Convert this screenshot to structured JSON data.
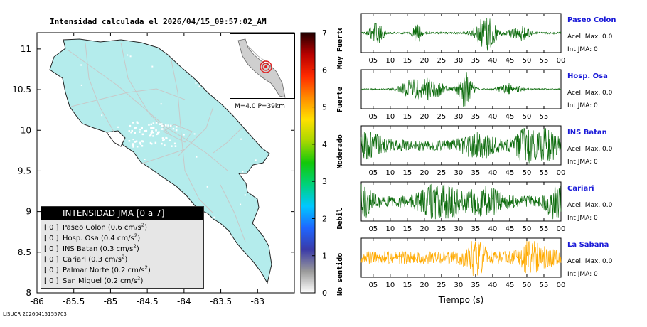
{
  "title": "Intensidad calculada el 2026/04/15_09:57:02_AM",
  "footer": "LISUCR 20260415155703",
  "inset": {
    "label": "M=4.0 P=39km"
  },
  "legend": {
    "header": "INTENSIDAD JMA [0 a 7]",
    "items": [
      {
        "level": "[ 0 ]",
        "station": "Paseo Colon",
        "accel": "(0.6 cm/s",
        "sup": "2",
        "close": ")"
      },
      {
        "level": "[ 0 ]",
        "station": "Hosp. Osa",
        "accel": "(0.4 cm/s",
        "sup": "2",
        "close": ")"
      },
      {
        "level": "[ 0 ]",
        "station": "INS Batan",
        "accel": "(0.3 cm/s",
        "sup": "2",
        "close": ")"
      },
      {
        "level": "[ 0 ]",
        "station": "Cariari",
        "accel": "(0.3 cm/s",
        "sup": "2",
        "close": ")"
      },
      {
        "level": "[ 0 ]",
        "station": "Palmar Norte",
        "accel": "(0.2 cm/s",
        "sup": "2",
        "close": ")"
      },
      {
        "level": "[ 0 ]",
        "station": "San Miguel",
        "accel": "(0.2 cm/s",
        "sup": "2",
        "close": ")"
      }
    ]
  },
  "colorbar": {
    "ticks": [
      "0",
      "1",
      "2",
      "3",
      "4",
      "5",
      "6",
      "7"
    ],
    "labels": [
      {
        "text": "No sentido",
        "value": 0.5
      },
      {
        "text": "Debil",
        "value": 2.0
      },
      {
        "text": "Moderado",
        "value": 3.8
      },
      {
        "text": "Fuerte",
        "value": 5.2
      },
      {
        "text": "Muy Fuerte",
        "value": 6.6
      }
    ],
    "colors": [
      "#ffffff",
      "#9a9a9a",
      "#3a3aa8",
      "#1e66ff",
      "#00c8ff",
      "#00d27a",
      "#12c80a",
      "#a8d800",
      "#ffe000",
      "#ff8c00",
      "#ff2a00",
      "#b80000",
      "#220000"
    ]
  },
  "map": {
    "xticks": [
      "-86",
      "-85.5",
      "-85",
      "-84.5",
      "-84",
      "-83.5",
      "-83"
    ],
    "xvalues": [
      -86,
      -85.5,
      -85,
      -84.5,
      -84,
      -83.5,
      -83
    ],
    "yticks": [
      "8",
      "8.5",
      "9",
      "9.5",
      "10",
      "10.5",
      "11"
    ],
    "yvalues": [
      8,
      8.5,
      9,
      9.5,
      10,
      10.5,
      11
    ],
    "xlim": [
      -86,
      -82.5
    ],
    "ylim": [
      8,
      11.2
    ],
    "land_color": "#b4ecec"
  },
  "chart_data": {
    "type": "line",
    "title": "Intensidad calculada el 2026/04/15_09:57:02_AM",
    "xlabel": "Tiempo (s)",
    "xticks": [
      "05",
      "10",
      "15",
      "20",
      "25",
      "30",
      "35",
      "40",
      "45",
      "50",
      "55",
      "00"
    ],
    "stations": [
      {
        "name": "Paseo Colon",
        "accel": "Acel. Max. 0.0",
        "jma": "Int JMA: 0",
        "color": "#0a6a0a",
        "xticks": [
          "05",
          "10",
          "15",
          "20",
          "25",
          "30",
          "35",
          "40",
          "45",
          "50",
          "55",
          "00"
        ],
        "noise": 0.05,
        "bursts": [
          [
            6,
            2,
            0.6
          ],
          [
            18,
            1.5,
            0.5
          ],
          [
            38,
            3,
            1.0
          ],
          [
            48,
            3,
            0.4
          ]
        ]
      },
      {
        "name": "Hosp. Osa",
        "accel": "Acel. Max. 0.0",
        "jma": "Int JMA: 0",
        "color": "#0a6a0a",
        "xticks": [
          "05",
          "10",
          "15",
          "20",
          "25",
          "30",
          "35",
          "40",
          "45",
          "50",
          "55"
        ],
        "noise": 0.04,
        "bursts": [
          [
            16,
            3,
            0.5
          ],
          [
            22,
            4,
            0.6
          ],
          [
            32,
            2,
            1.0
          ],
          [
            45,
            3,
            0.3
          ]
        ]
      },
      {
        "name": "INS Batan",
        "accel": "Acel. Max. 0.0",
        "jma": "Int JMA: 0",
        "color": "#0a6a0a",
        "xticks": [
          "05",
          "10",
          "15",
          "20",
          "25",
          "30",
          "35",
          "40",
          "45",
          "50",
          "55",
          "00"
        ],
        "noise": 0.3,
        "bursts": [
          [
            4,
            4,
            0.5
          ],
          [
            36,
            5,
            0.5
          ],
          [
            50,
            3,
            1.0
          ],
          [
            56,
            3,
            0.7
          ]
        ]
      },
      {
        "name": "Cariari",
        "accel": "Acel. Max. 0.0",
        "jma": "Int JMA: 0",
        "color": "#0a6a0a",
        "xticks": [
          "05",
          "10",
          "15",
          "20",
          "25",
          "30",
          "35",
          "40",
          "45",
          "50",
          "55",
          "00"
        ],
        "noise": 0.3,
        "bursts": [
          [
            2,
            3,
            0.7
          ],
          [
            25,
            6,
            0.9
          ],
          [
            38,
            5,
            0.6
          ],
          [
            59,
            3,
            1.0
          ]
        ]
      },
      {
        "name": "La Sabana",
        "accel": "Acel. Max. 0.0",
        "jma": "Int JMA: 0",
        "color": "#ffaa00",
        "xticks": [
          "05",
          "10",
          "15",
          "20",
          "25",
          "30",
          "35",
          "40",
          "45",
          "50",
          "55",
          "00"
        ],
        "noise": 0.35,
        "bursts": [
          [
            35,
            3,
            0.7
          ],
          [
            51,
            1,
            1.0
          ],
          [
            52,
            5,
            0.5
          ]
        ]
      }
    ]
  }
}
